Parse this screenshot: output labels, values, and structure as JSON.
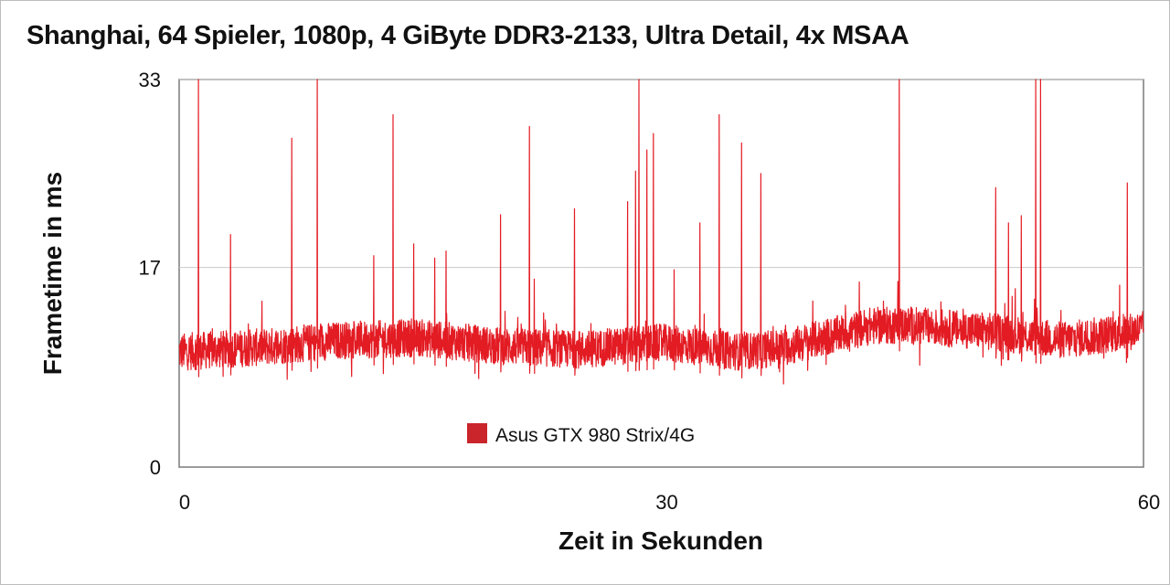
{
  "chart_data": {
    "type": "line",
    "title": "Shanghai, 64 Spieler, 1080p, 4 GiByte DDR3-2133, Ultra Detail, 4x MSAA",
    "xlabel": "Zeit in Sekunden",
    "ylabel": "Frametime in ms",
    "xlim": [
      0,
      60
    ],
    "ylim": [
      0,
      33
    ],
    "x_ticks": [
      "0",
      "30",
      "60"
    ],
    "y_ticks": [
      "0",
      "17",
      "33"
    ],
    "grid": true,
    "legend_position": "bottom-center",
    "series": [
      {
        "name": "Asus GTX 980 Strix/4G",
        "color": "#e31b23",
        "baseline": [
          [
            0,
            9.8
          ],
          [
            5,
            10.2
          ],
          [
            10,
            10.8
          ],
          [
            15,
            11.0
          ],
          [
            20,
            10.3
          ],
          [
            25,
            10.0
          ],
          [
            30,
            10.6
          ],
          [
            35,
            9.8
          ],
          [
            38,
            10.3
          ],
          [
            43,
            12.0
          ],
          [
            45,
            12.1
          ],
          [
            50,
            11.6
          ],
          [
            55,
            10.8
          ],
          [
            60,
            11.7
          ]
        ],
        "spikes": [
          [
            1.2,
            33
          ],
          [
            3.2,
            19.8
          ],
          [
            7.0,
            28.0
          ],
          [
            8.6,
            33
          ],
          [
            12.1,
            18.0
          ],
          [
            13.3,
            30.0
          ],
          [
            14.6,
            19.0
          ],
          [
            15.9,
            17.8
          ],
          [
            16.6,
            18.4
          ],
          [
            20.0,
            21.5
          ],
          [
            21.8,
            29.0
          ],
          [
            22.1,
            16.0
          ],
          [
            24.6,
            22.0
          ],
          [
            27.9,
            22.6
          ],
          [
            28.4,
            25.2
          ],
          [
            28.6,
            33
          ],
          [
            29.1,
            27.0
          ],
          [
            29.5,
            28.4
          ],
          [
            30.8,
            16.8
          ],
          [
            32.4,
            20.8
          ],
          [
            33.6,
            30.0
          ],
          [
            35.0,
            27.6
          ],
          [
            36.2,
            25.0
          ],
          [
            44.8,
            33
          ],
          [
            50.8,
            23.8
          ],
          [
            51.6,
            20.8
          ],
          [
            52.4,
            21.4
          ],
          [
            53.3,
            33
          ],
          [
            53.6,
            33
          ],
          [
            59.0,
            24.2
          ]
        ]
      }
    ]
  }
}
